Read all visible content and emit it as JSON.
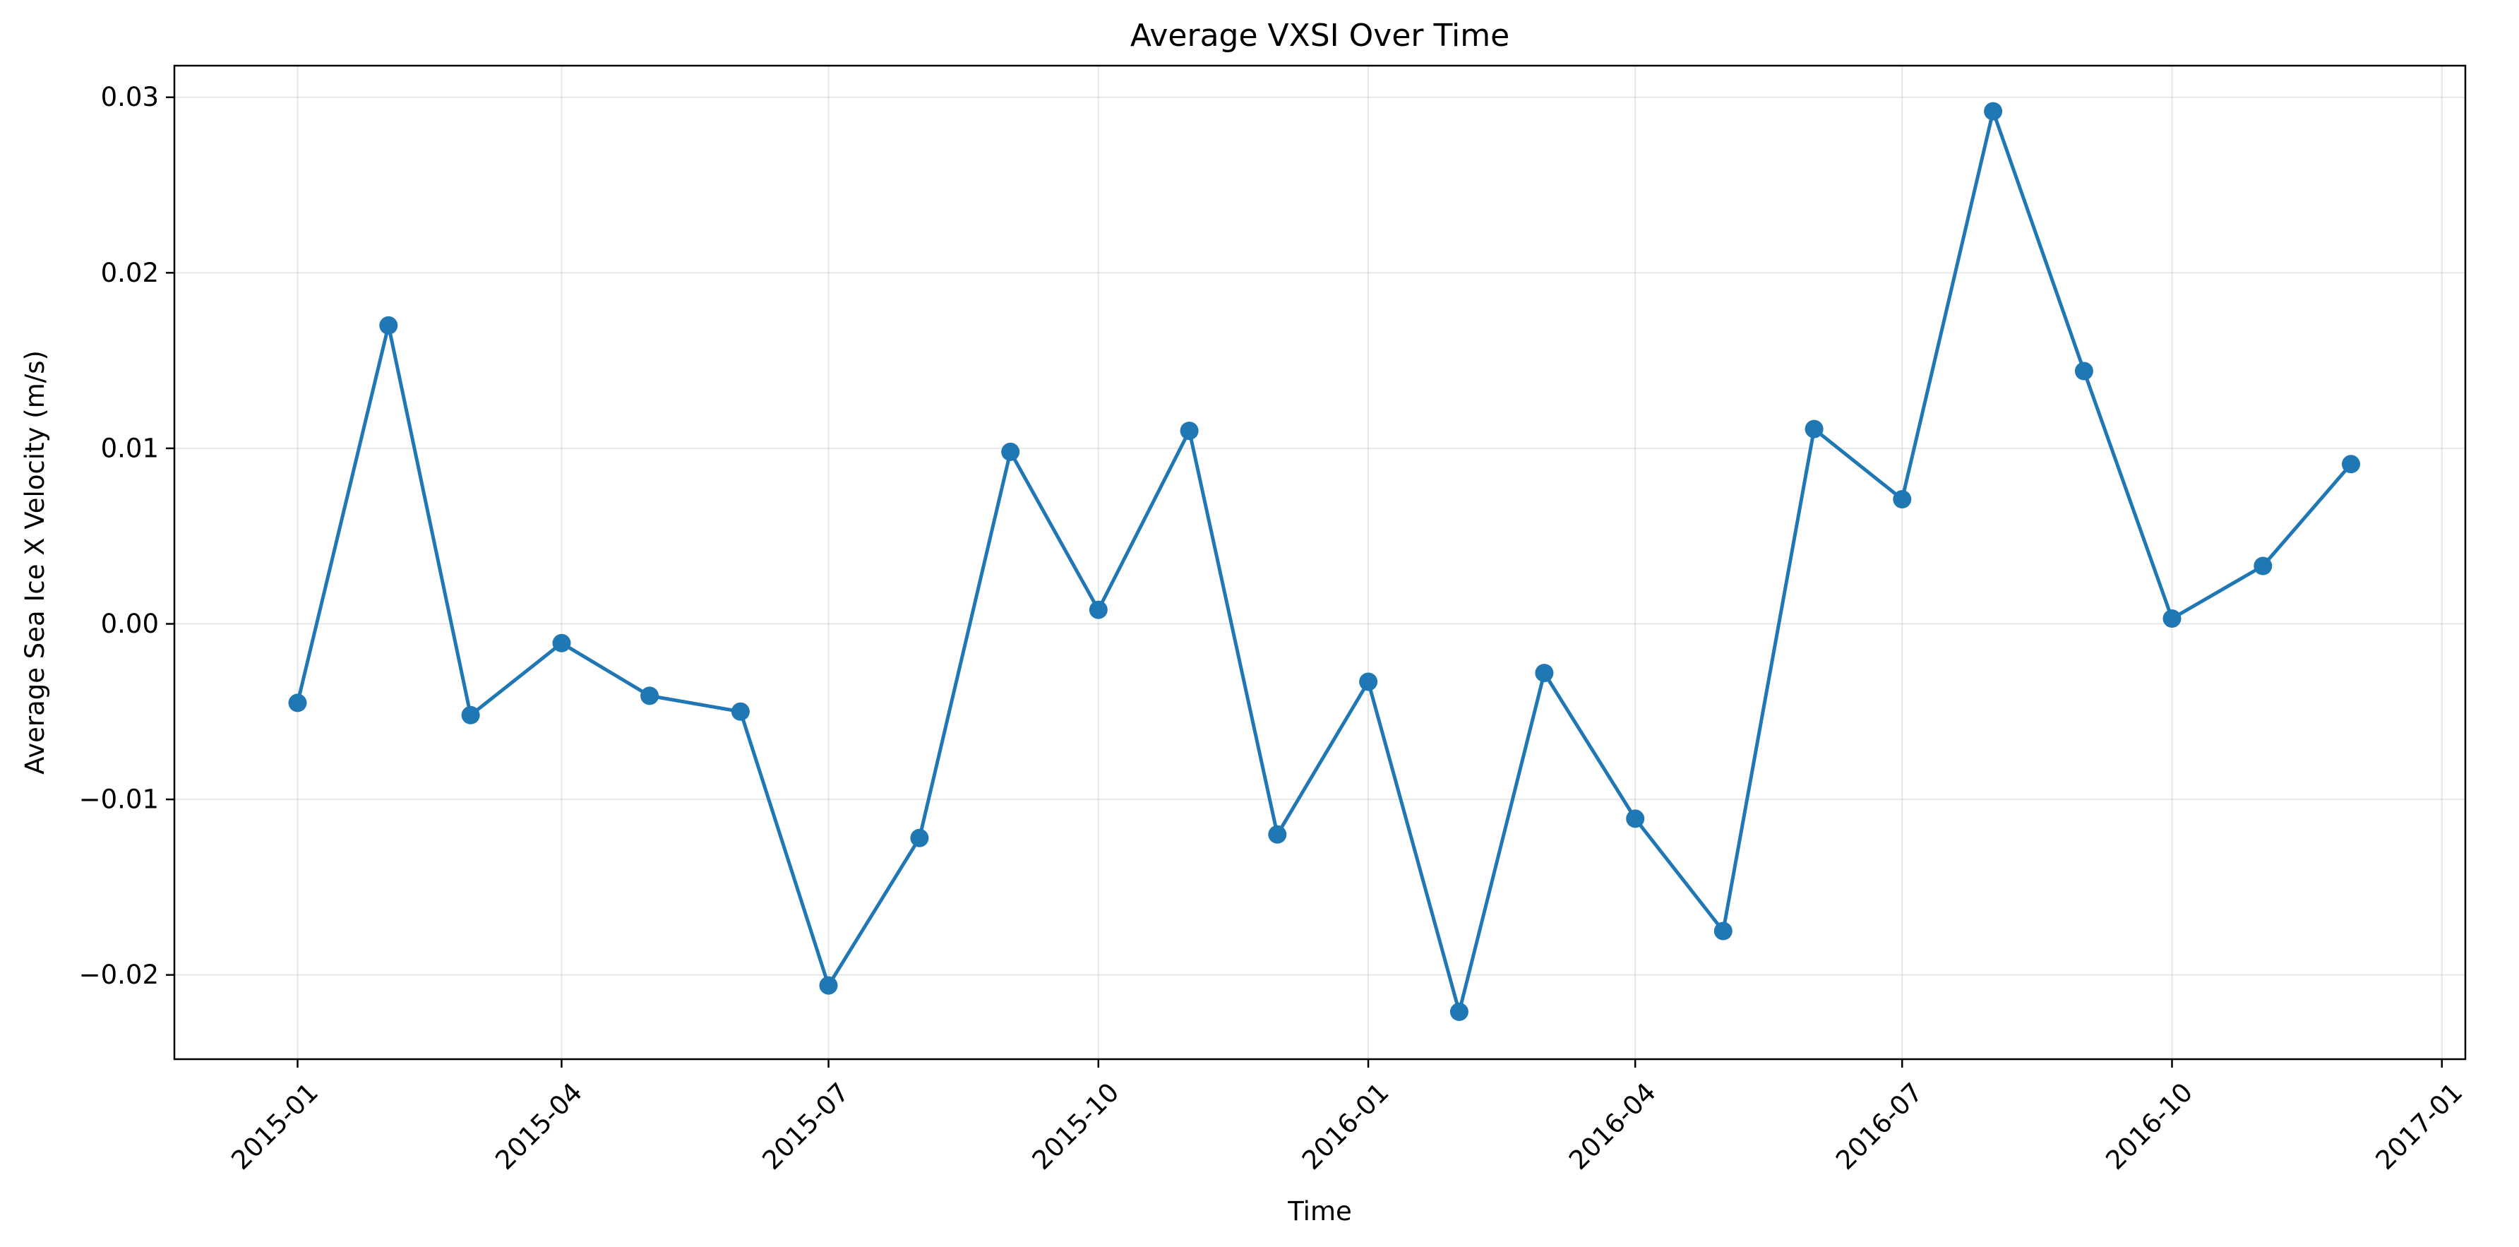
{
  "chart_data": {
    "type": "line",
    "title": "Average VXSI Over Time",
    "xlabel": "Time",
    "ylabel": "Average Sea Ice X Velocity (m/s)",
    "ylim": [
      -0.0248,
      0.0318
    ],
    "xlim": [
      "2014-11-20",
      "2017-01-09"
    ],
    "grid": true,
    "color": "#1f77b4",
    "x_ticks": [
      {
        "date": "2015-01-01",
        "label": "2015-01"
      },
      {
        "date": "2015-04-01",
        "label": "2015-04"
      },
      {
        "date": "2015-07-01",
        "label": "2015-07"
      },
      {
        "date": "2015-10-01",
        "label": "2015-10"
      },
      {
        "date": "2016-01-01",
        "label": "2016-01"
      },
      {
        "date": "2016-04-01",
        "label": "2016-04"
      },
      {
        "date": "2016-07-01",
        "label": "2016-07"
      },
      {
        "date": "2016-10-01",
        "label": "2016-10"
      },
      {
        "date": "2017-01-01",
        "label": "2017-01"
      }
    ],
    "y_ticks": [
      {
        "value": -0.02,
        "label": "−0.02"
      },
      {
        "value": -0.01,
        "label": "−0.01"
      },
      {
        "value": 0.0,
        "label": "0.00"
      },
      {
        "value": 0.01,
        "label": "0.01"
      },
      {
        "value": 0.02,
        "label": "0.02"
      },
      {
        "value": 0.03,
        "label": "0.03"
      }
    ],
    "series": [
      {
        "x": [
          "2015-01-01",
          "2015-02-01",
          "2015-03-01",
          "2015-04-01",
          "2015-05-01",
          "2015-06-01",
          "2015-07-01",
          "2015-08-01",
          "2015-09-01",
          "2015-10-01",
          "2015-11-01",
          "2015-12-01",
          "2016-01-01",
          "2016-02-01",
          "2016-03-01",
          "2016-04-01",
          "2016-05-01",
          "2016-06-01",
          "2016-07-01",
          "2016-08-01",
          "2016-09-01",
          "2016-10-01",
          "2016-11-01",
          "2016-12-01"
        ],
        "y": [
          -0.0045,
          0.017,
          -0.0052,
          -0.0011,
          -0.0041,
          -0.005,
          -0.0206,
          -0.0122,
          0.0098,
          0.0008,
          0.011,
          -0.012,
          -0.0033,
          -0.0221,
          -0.0028,
          -0.0111,
          -0.0175,
          0.0111,
          0.0071,
          0.0292,
          0.0144,
          0.0003,
          0.0033,
          0.0091
        ]
      }
    ]
  }
}
